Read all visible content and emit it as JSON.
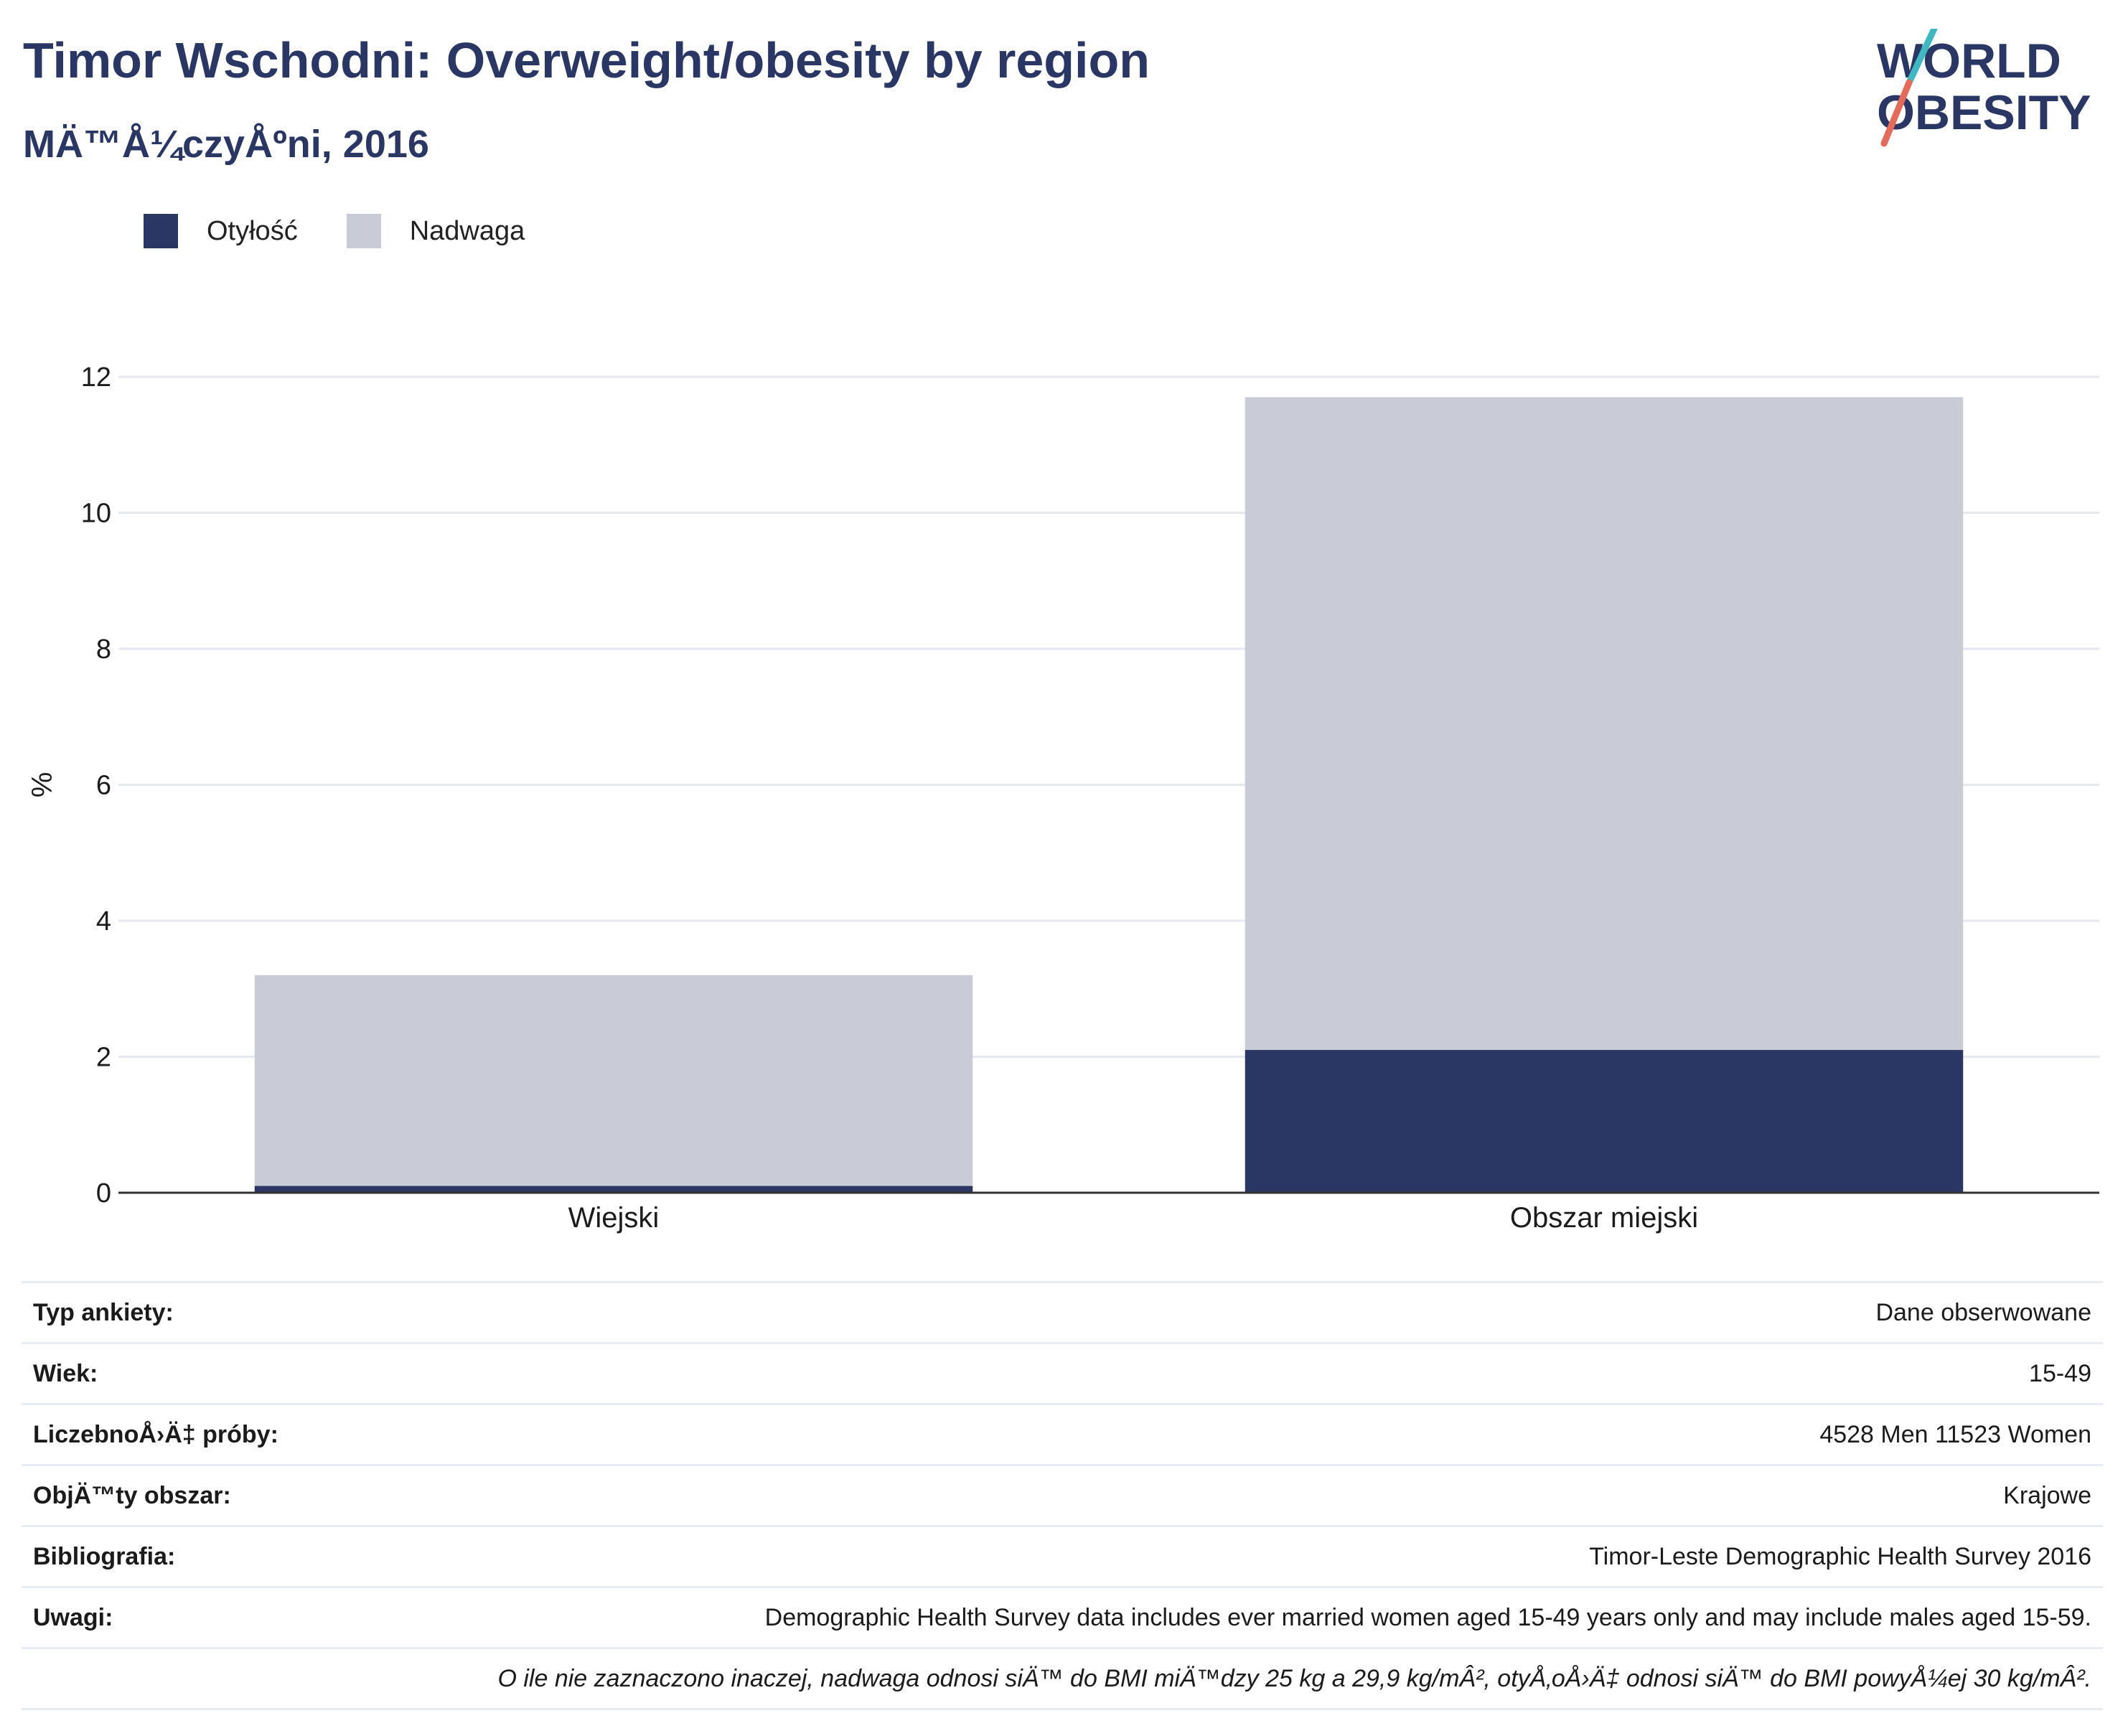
{
  "header": {
    "title": "Timor Wschodni: Overweight/obesity by region",
    "subtitle": "MÄ™Å¼czyÅºni, 2016"
  },
  "logo": {
    "line1": "WORLD",
    "line2": "OBESITY",
    "colors": {
      "text": "#2a3764",
      "slash_top": "#3fb8c4",
      "slash_bottom": "#e46b5a"
    }
  },
  "legend": [
    {
      "label": "Otyłość",
      "color": "#2a3764"
    },
    {
      "label": "Nadwaga",
      "color": "#c9cbd6"
    }
  ],
  "chart_data": {
    "type": "bar",
    "stacked": true,
    "categories": [
      "Wiejski",
      "Obszar miejski"
    ],
    "series": [
      {
        "name": "Otyłość",
        "color": "#2a3764",
        "values": [
          0.1,
          2.1
        ]
      },
      {
        "name": "Nadwaga",
        "color": "#c9cbd6",
        "values": [
          3.1,
          9.6
        ]
      }
    ],
    "ylabel": "%",
    "ylim": [
      0,
      12
    ],
    "yticks": [
      0,
      2,
      4,
      6,
      8,
      10,
      12
    ],
    "grid": true
  },
  "info": [
    {
      "key": "Typ ankiety:",
      "value": "Dane obserwowane"
    },
    {
      "key": "Wiek:",
      "value": "15-49"
    },
    {
      "key": "LiczebnoÅ›Ä‡ próby:",
      "value": "4528 Men 11523 Women"
    },
    {
      "key": "ObjÄ™ty obszar:",
      "value": "Krajowe"
    },
    {
      "key": "Bibliografia:",
      "value": "Timor-Leste Demographic Health Survey 2016"
    },
    {
      "key": "Uwagi:",
      "value": "Demographic Health Survey data includes ever married women aged 15-49 years only and may include males aged 15-59."
    }
  ],
  "footnote": "O ile nie zaznaczono inaczej, nadwaga odnosi siÄ™ do BMI miÄ™dzy 25 kg a 29,9 kg/mÂ², otyÅ‚oÅ›Ä‡ odnosi siÄ™ do BMI powyÅ¼ej 30 kg/mÂ²."
}
